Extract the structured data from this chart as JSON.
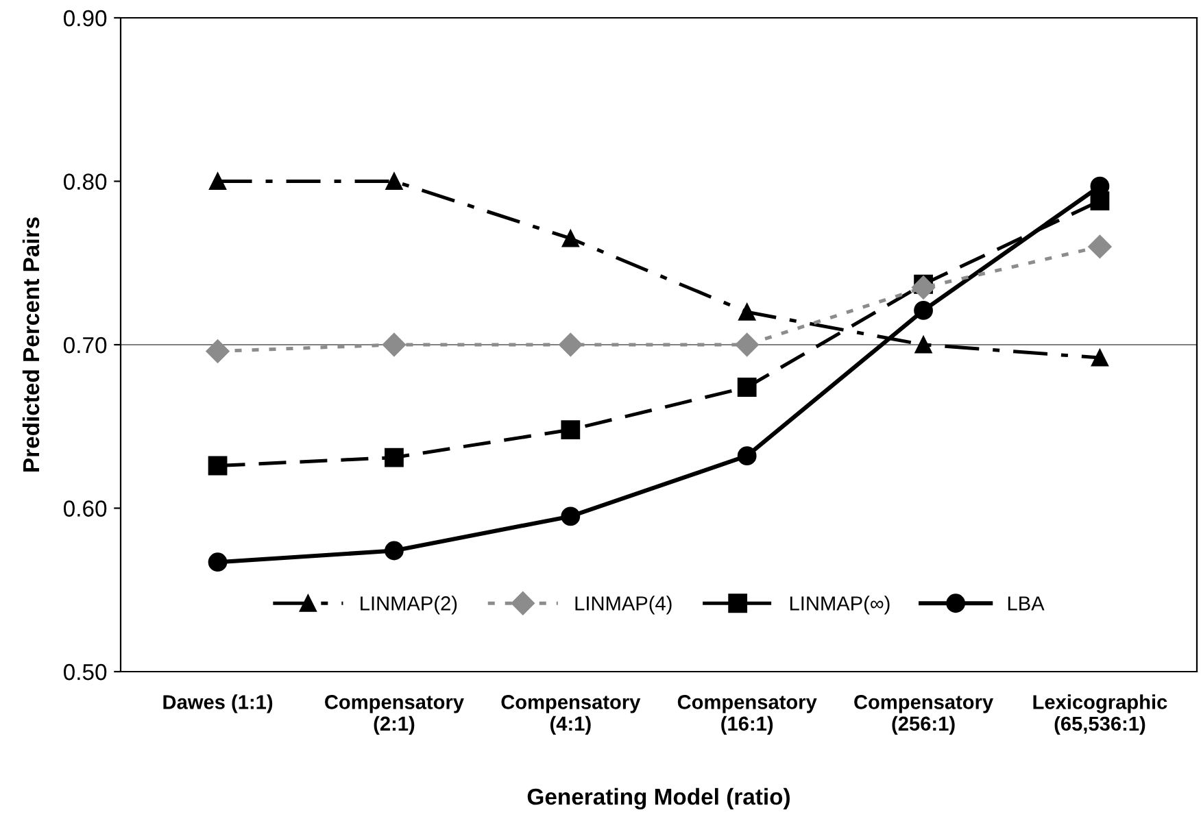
{
  "chart_data": {
    "type": "line",
    "xlabel": "Generating Model (ratio)",
    "ylabel": "Predicted Percent Pairs",
    "categories": [
      "Dawes (1:1)",
      "Compensatory\n(2:1)",
      "Compensatory\n(4:1)",
      "Compensatory\n(16:1)",
      "Compensatory\n(256:1)",
      "Lexicographic\n(65,536:1)"
    ],
    "series": [
      {
        "name": "LINMAP(2)",
        "color": "#000000",
        "marker": "triangle",
        "line_style": "dashdot",
        "values": [
          0.8,
          0.8,
          0.765,
          0.72,
          0.7,
          0.692
        ]
      },
      {
        "name": "LINMAP(4)",
        "color": "#8c8c8c",
        "marker": "diamond",
        "line_style": "dotted",
        "values": [
          0.696,
          0.7,
          0.7,
          0.7,
          0.735,
          0.76
        ]
      },
      {
        "name": "LINMAP(∞)",
        "color": "#000000",
        "marker": "square",
        "line_style": "dashed",
        "values": [
          0.626,
          0.631,
          0.648,
          0.674,
          0.737,
          0.788
        ]
      },
      {
        "name": "LBA",
        "color": "#000000",
        "marker": "circle",
        "line_style": "solid",
        "values": [
          0.567,
          0.574,
          0.595,
          0.632,
          0.721,
          0.797
        ]
      }
    ],
    "ylim": [
      0.5,
      0.9
    ],
    "yticks": [
      {
        "value": 0.5,
        "label": "0.50"
      },
      {
        "value": 0.6,
        "label": "0.60"
      },
      {
        "value": 0.7,
        "label": "0.70"
      },
      {
        "value": 0.8,
        "label": "0.80"
      },
      {
        "value": 0.9,
        "label": "0.90"
      }
    ],
    "ref_lines": [
      {
        "axis": "y",
        "value": 0.7,
        "color": "#808080",
        "line_style": "solid"
      }
    ],
    "grid": false,
    "legend": "bottom"
  }
}
